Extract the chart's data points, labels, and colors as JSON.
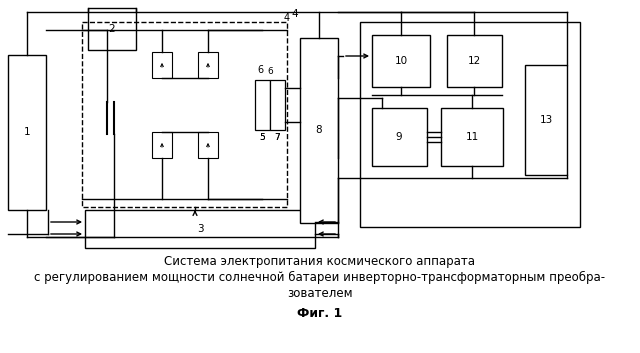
{
  "title_line1": "Система электропитания космического аппарата",
  "title_line2": "с регулированием мощности солнечной батареи инверторно-трансформаторным преобра-",
  "title_line3": "зователем",
  "fig_label": "Фиг. 1",
  "bg_color": "#ffffff",
  "fig_w": 6.4,
  "fig_h": 3.53,
  "dpi": 100,
  "lw": 1.0,
  "b1": [
    8,
    55,
    38,
    155
  ],
  "b2": [
    88,
    8,
    48,
    42
  ],
  "b3": [
    85,
    210,
    230,
    38
  ],
  "b8": [
    300,
    38,
    38,
    185
  ],
  "b10": [
    372,
    35,
    58,
    52
  ],
  "b12": [
    447,
    35,
    55,
    52
  ],
  "b9": [
    372,
    108,
    55,
    58
  ],
  "b11": [
    441,
    108,
    62,
    58
  ],
  "b13": [
    525,
    65,
    42,
    110
  ],
  "db": [
    82,
    22,
    205,
    185
  ],
  "outer": [
    360,
    22,
    220,
    205
  ]
}
